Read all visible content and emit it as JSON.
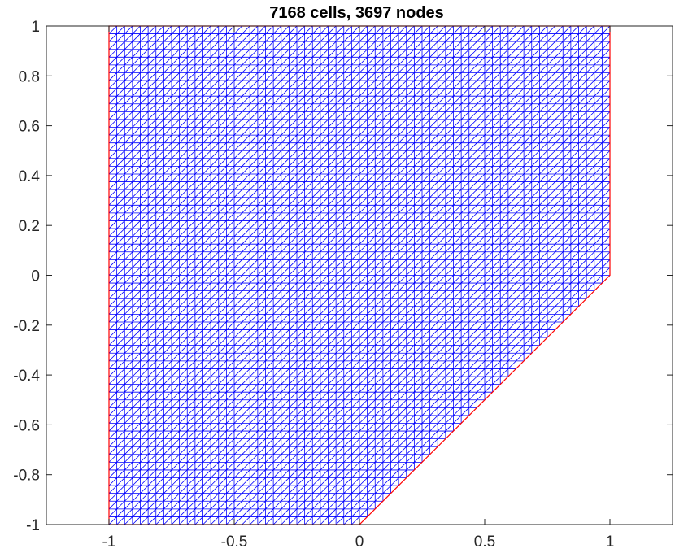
{
  "chart_data": {
    "type": "mesh",
    "title": "7168 cells, 3697 nodes",
    "xlabel": "",
    "ylabel": "",
    "xlim": [
      -1.25,
      1.25
    ],
    "ylim": [
      -1,
      1
    ],
    "xticks": [
      -1,
      -0.5,
      0,
      0.5,
      1
    ],
    "xtick_labels": [
      "-1",
      "-0.5",
      "0",
      "0.5",
      "1"
    ],
    "yticks": [
      -1,
      -0.8,
      -0.6,
      -0.4,
      -0.2,
      0,
      0.2,
      0.4,
      0.6,
      0.8,
      1
    ],
    "ytick_labels": [
      "-1",
      "-0.8",
      "-0.6",
      "-0.4",
      "-0.2",
      "0",
      "0.2",
      "0.4",
      "0.6",
      "0.8",
      "1"
    ],
    "grid": false,
    "cells": 7168,
    "nodes": 3697,
    "mesh_divisions_per_unit": 32,
    "boundary": [
      [
        -1,
        -1
      ],
      [
        0,
        -1
      ],
      [
        1,
        0
      ],
      [
        1,
        1
      ],
      [
        -1,
        1
      ]
    ],
    "colors": {
      "mesh": "#0000ff",
      "boundary": "#ff0000",
      "axes": "#262626",
      "background": "#ffffff"
    }
  }
}
